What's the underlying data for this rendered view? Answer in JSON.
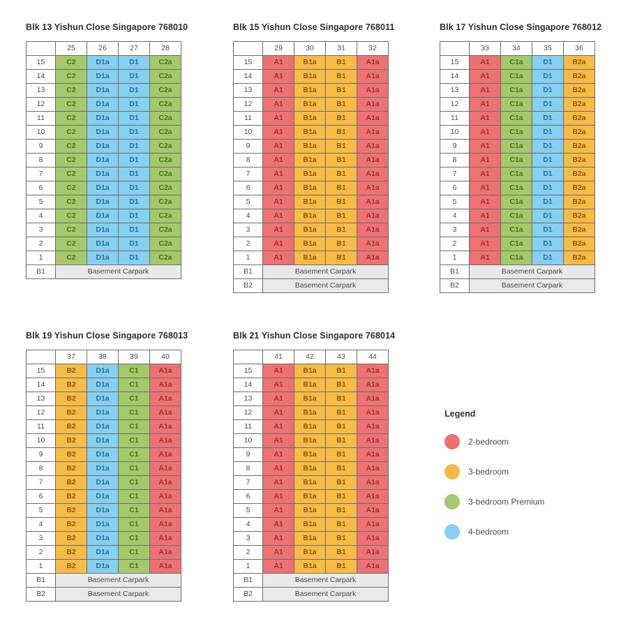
{
  "page": {
    "background": "#ffffff"
  },
  "floors": [
    "15",
    "14",
    "13",
    "12",
    "11",
    "10",
    "9",
    "8",
    "7",
    "6",
    "5",
    "4",
    "3",
    "2",
    "1"
  ],
  "unit_type_colors": {
    "2-bedroom": {
      "fill": "#ED7173",
      "text": "#9C3439"
    },
    "3-bedroom": {
      "fill": "#F6BB45",
      "text": "#8A5A14"
    },
    "3-bedroom Premium": {
      "fill": "#A3C96A",
      "text": "#4C7320"
    },
    "4-bedroom": {
      "fill": "#85CFF0",
      "text": "#2E6F9C"
    }
  },
  "basement_style": {
    "fill": "#e9e9e9",
    "text": "#4b4b4b"
  },
  "blocks": [
    {
      "title": "Blk 13 Yishun Close Singapore 768010",
      "stacks": [
        "25",
        "26",
        "27",
        "28"
      ],
      "units": [
        {
          "code": "C2",
          "type": "3-bedroom Premium"
        },
        {
          "code": "D1a",
          "type": "4-bedroom"
        },
        {
          "code": "D1",
          "type": "4-bedroom"
        },
        {
          "code": "C2a",
          "type": "3-bedroom Premium"
        }
      ],
      "basements": [
        {
          "floor": "B1",
          "label": "Basement Carpark"
        }
      ]
    },
    {
      "title": "Blk 15 Yishun Close Singapore 768011",
      "stacks": [
        "29",
        "30",
        "31",
        "32"
      ],
      "units": [
        {
          "code": "A1",
          "type": "2-bedroom"
        },
        {
          "code": "B1a",
          "type": "3-bedroom"
        },
        {
          "code": "B1",
          "type": "3-bedroom"
        },
        {
          "code": "A1a",
          "type": "2-bedroom"
        }
      ],
      "basements": [
        {
          "floor": "B1",
          "label": "Basement Carpark"
        },
        {
          "floor": "B2",
          "label": "Basement Carpark"
        }
      ]
    },
    {
      "title": "Blk 17 Yishun Close Singapore 768012",
      "stacks": [
        "33",
        "34",
        "35",
        "36"
      ],
      "units": [
        {
          "code": "A1",
          "type": "2-bedroom"
        },
        {
          "code": "C1a",
          "type": "3-bedroom Premium"
        },
        {
          "code": "D1",
          "type": "4-bedroom"
        },
        {
          "code": "B2a",
          "type": "3-bedroom"
        }
      ],
      "basements": [
        {
          "floor": "B1",
          "label": "Basement Carpark"
        },
        {
          "floor": "B2",
          "label": "Basement Carpark"
        }
      ]
    },
    {
      "title": "Blk 19 Yishun Close Singapore 768013",
      "stacks": [
        "37",
        "38",
        "39",
        "40"
      ],
      "units": [
        {
          "code": "B2",
          "type": "3-bedroom"
        },
        {
          "code": "D1a",
          "type": "4-bedroom"
        },
        {
          "code": "C1",
          "type": "3-bedroom Premium"
        },
        {
          "code": "A1a",
          "type": "2-bedroom"
        }
      ],
      "basements": [
        {
          "floor": "B1",
          "label": "Basement Carpark"
        },
        {
          "floor": "B2",
          "label": "Basement Carpark"
        }
      ]
    },
    {
      "title": "Blk 21 Yishun Close Singapore 768014",
      "stacks": [
        "41",
        "42",
        "43",
        "44"
      ],
      "units": [
        {
          "code": "A1",
          "type": "2-bedroom"
        },
        {
          "code": "B1a",
          "type": "3-bedroom"
        },
        {
          "code": "B1",
          "type": "3-bedroom"
        },
        {
          "code": "A1a",
          "type": "2-bedroom"
        }
      ],
      "basements": [
        {
          "floor": "B1",
          "label": "Basement Carpark"
        },
        {
          "floor": "B2",
          "label": "Basement Carpark"
        }
      ]
    }
  ],
  "legend": {
    "title": "Legend",
    "items": [
      {
        "label": "2-bedroom",
        "type": "2-bedroom"
      },
      {
        "label": "3-bedroom",
        "type": "3-bedroom"
      },
      {
        "label": "3-bedroom Premium",
        "type": "3-bedroom Premium"
      },
      {
        "label": "4-bedroom",
        "type": "4-bedroom"
      }
    ]
  }
}
